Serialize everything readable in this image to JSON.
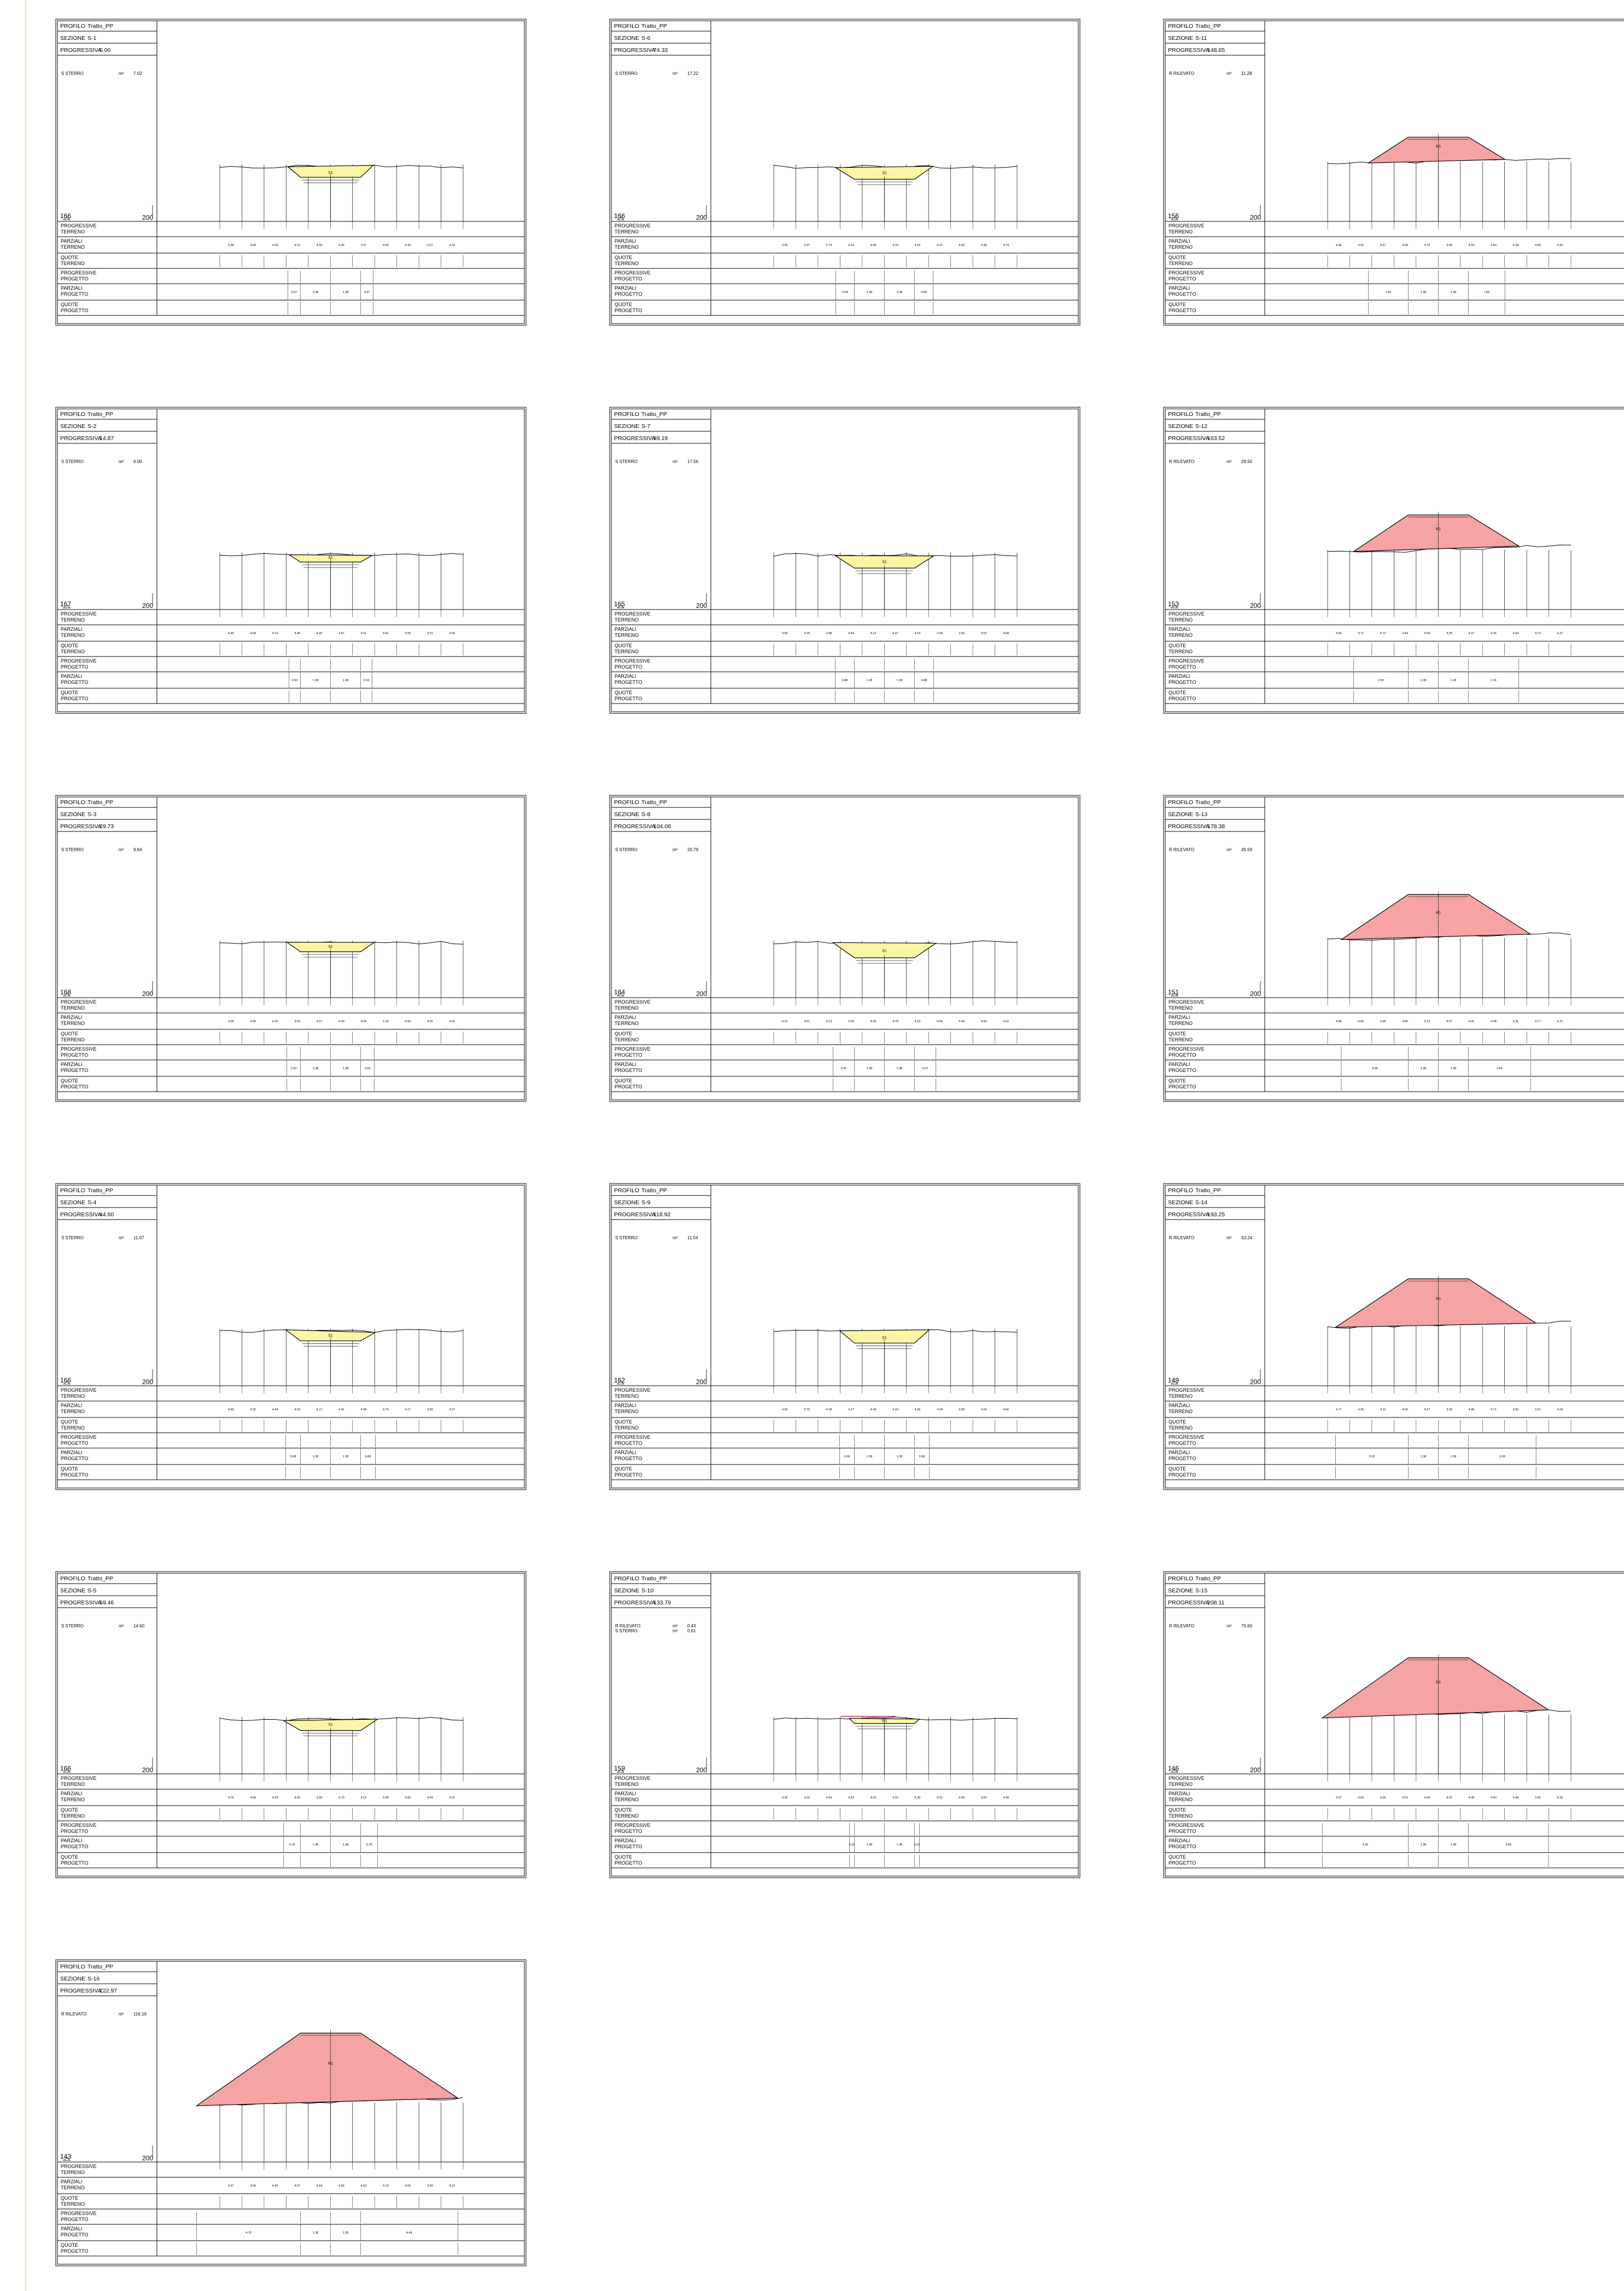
{
  "profile": {
    "label": "PROFILO",
    "name": "Tratto_PP"
  },
  "labels": {
    "sezione": "SEZIONE",
    "progressiva": "PROGRESSIVA",
    "datum": "200",
    "row_labels": [
      [
        "PROGRESSIVE",
        "TERRENO"
      ],
      [
        "PARZIALI",
        "TERRENO"
      ],
      [
        "QUOTE",
        "TERRENO"
      ],
      [
        "PROGRESSIVE",
        "PROGETTO"
      ],
      [
        "PARZIALI",
        "PROGETTO"
      ],
      [
        "QUOTE",
        "PROGETTO"
      ]
    ]
  },
  "colors": {
    "sterro_fill": "#fbf5a6",
    "rilevato_fill": "#f5a3a3",
    "line": "#000000",
    "page_margin": "#f1e28a"
  },
  "sections": [
    {
      "id": "S-1",
      "progressiva": "0.00",
      "volumes": [
        {
          "label": "S  STERRO",
          "unit": "m²",
          "value": "7.02"
        }
      ],
      "elevation": "166",
      "type": "sterro",
      "area_label": "S1",
      "magnitude": 0.45
    },
    {
      "id": "S-2",
      "progressiva": "14.87",
      "volumes": [
        {
          "label": "S  STERRO",
          "unit": "m²",
          "value": "6.00"
        }
      ],
      "elevation": "167",
      "type": "sterro",
      "area_label": "S1",
      "magnitude": 0.4
    },
    {
      "id": "S-3",
      "progressiva": "29.73",
      "volumes": [
        {
          "label": "S  STERRO",
          "unit": "m²",
          "value": "9.64"
        }
      ],
      "elevation": "168",
      "type": "sterro",
      "area_label": "S1",
      "magnitude": 0.5
    },
    {
      "id": "S-4",
      "progressiva": "44.60",
      "volumes": [
        {
          "label": "S  STERRO",
          "unit": "m²",
          "value": "11.07"
        }
      ],
      "elevation": "166",
      "type": "sterro",
      "area_label": "S1",
      "magnitude": 0.55
    },
    {
      "id": "S-5",
      "progressiva": "59.46",
      "volumes": [
        {
          "label": "S  STERRO",
          "unit": "m²",
          "value": "14.60"
        }
      ],
      "elevation": "166",
      "type": "sterro",
      "area_label": "S1",
      "magnitude": 0.65
    },
    {
      "id": "S-6",
      "progressiva": "74.33",
      "volumes": [
        {
          "label": "S  STERRO",
          "unit": "m²",
          "value": "17.22"
        }
      ],
      "elevation": "166",
      "type": "sterro",
      "area_label": "S1",
      "magnitude": 0.72
    },
    {
      "id": "S-7",
      "progressiva": "89.19",
      "volumes": [
        {
          "label": "S  STERRO",
          "unit": "m²",
          "value": "17.56"
        }
      ],
      "elevation": "165",
      "type": "sterro",
      "area_label": "S1",
      "magnitude": 0.75
    },
    {
      "id": "S-8",
      "progressiva": "104.06",
      "volumes": [
        {
          "label": "S  STERRO",
          "unit": "m²",
          "value": "20.79"
        }
      ],
      "elevation": "164",
      "type": "sterro",
      "area_label": "S1",
      "magnitude": 0.85
    },
    {
      "id": "S-9",
      "progressiva": "118.92",
      "volumes": [
        {
          "label": "S  STERRO",
          "unit": "m²",
          "value": "11.54"
        }
      ],
      "elevation": "162",
      "type": "sterro",
      "area_label": "S1",
      "magnitude": 0.55
    },
    {
      "id": "S-10",
      "progressiva": "133.79",
      "volumes": [
        {
          "label": "R  RILEVATO",
          "unit": "m²",
          "value": "0.43"
        },
        {
          "label": "S  STERRO",
          "unit": "m²",
          "value": "0.61"
        }
      ],
      "elevation": "159",
      "type": "mixed",
      "area_label": "R1",
      "magnitude": 0.1
    },
    {
      "id": "S-11",
      "progressiva": "148.65",
      "volumes": [
        {
          "label": "R  RILEVATO",
          "unit": "m²",
          "value": "11.28"
        }
      ],
      "elevation": "156",
      "type": "rilevato",
      "area_label": "R1",
      "magnitude": 0.22
    },
    {
      "id": "S-12",
      "progressiva": "163.52",
      "volumes": [
        {
          "label": "R  RILEVATO",
          "unit": "m²",
          "value": "29.50"
        }
      ],
      "elevation": "153",
      "type": "rilevato",
      "area_label": "R1",
      "magnitude": 0.4
    },
    {
      "id": "S-13",
      "progressiva": "178.38",
      "volumes": [
        {
          "label": "R  RILEVATO",
          "unit": "m²",
          "value": "45.59"
        }
      ],
      "elevation": "151",
      "type": "rilevato",
      "area_label": "R1",
      "magnitude": 0.55
    },
    {
      "id": "S-14",
      "progressiva": "193.25",
      "volumes": [
        {
          "label": "R  RILEVATO",
          "unit": "m²",
          "value": "53.24"
        }
      ],
      "elevation": "149",
      "type": "rilevato",
      "area_label": "R1",
      "magnitude": 0.62
    },
    {
      "id": "S-15",
      "progressiva": "208.11",
      "volumes": [
        {
          "label": "R  RILEVATO",
          "unit": "m²",
          "value": "75.60"
        }
      ],
      "elevation": "146",
      "type": "rilevato",
      "area_label": "R1",
      "magnitude": 0.78
    },
    {
      "id": "S-16",
      "progressiva": "222.97",
      "volumes": [
        {
          "label": "R  RILEVATO",
          "unit": "m²",
          "value": "116.16"
        }
      ],
      "elevation": "143",
      "type": "rilevato",
      "area_label": "R1",
      "magnitude": 1.0
    }
  ]
}
